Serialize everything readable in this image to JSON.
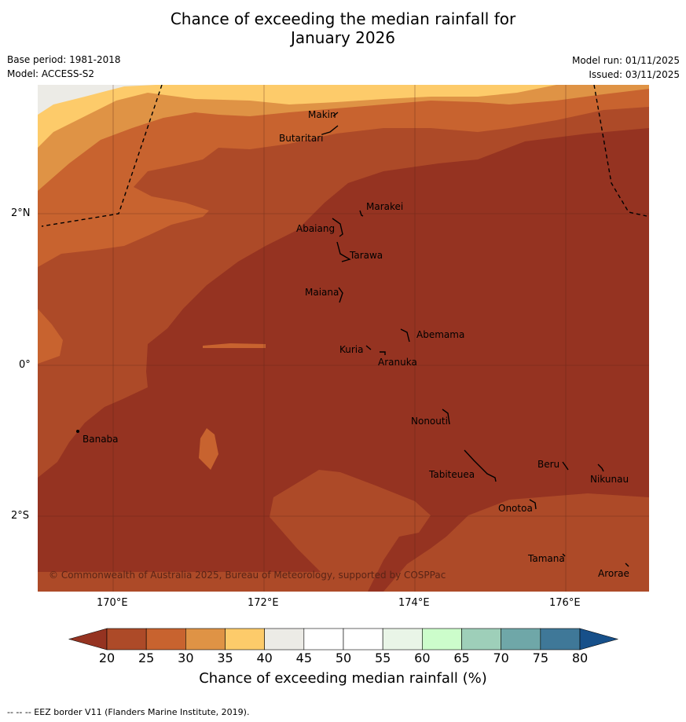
{
  "title_line1": "Chance of exceeding the median rainfall for",
  "title_line2": "January 2026",
  "meta": {
    "base_period": "Base period: 1981-2018",
    "model": "Model: ACCESS-S2",
    "model_run": "Model run: 01/11/2025",
    "issued": "Issued: 03/11/2025"
  },
  "lat_ticks": [
    "2°N",
    "0°",
    "2°S"
  ],
  "lon_ticks": [
    "170°E",
    "172°E",
    "174°E",
    "176°E"
  ],
  "places": [
    "Makin",
    "Butaritari",
    "Marakei",
    "Abaiang",
    "Tarawa",
    "Maiana",
    "Abemama",
    "Kuria",
    "Aranuka",
    "Nonouti",
    "Banaba",
    "Beru",
    "Tabiteuea",
    "Nikunau",
    "Onotoa",
    "Tamana",
    "Arorae"
  ],
  "copyright": "© Commonwealth of Australia 2025, Bureau of Meteorology, supported by COSPPac",
  "colorbar": {
    "ticks": [
      "20",
      "25",
      "30",
      "35",
      "40",
      "45",
      "50",
      "55",
      "60",
      "65",
      "70",
      "75",
      "80"
    ],
    "colors": [
      "#ad4a28",
      "#c8632f",
      "#df9345",
      "#fdcb6a",
      "#ecebe6",
      "#ffffff",
      "#ffffff",
      "#e9f5e7",
      "#ccfdcb",
      "#9ecfb9",
      "#6fa7a8",
      "#3f7898",
      "#17508a"
    ],
    "under_color": "#953321",
    "label": "Chance of exceeding median rainfall (%)"
  },
  "footer": "--  --  -- EEZ border V11 (Flanders Marine Institute, 2019)."
}
